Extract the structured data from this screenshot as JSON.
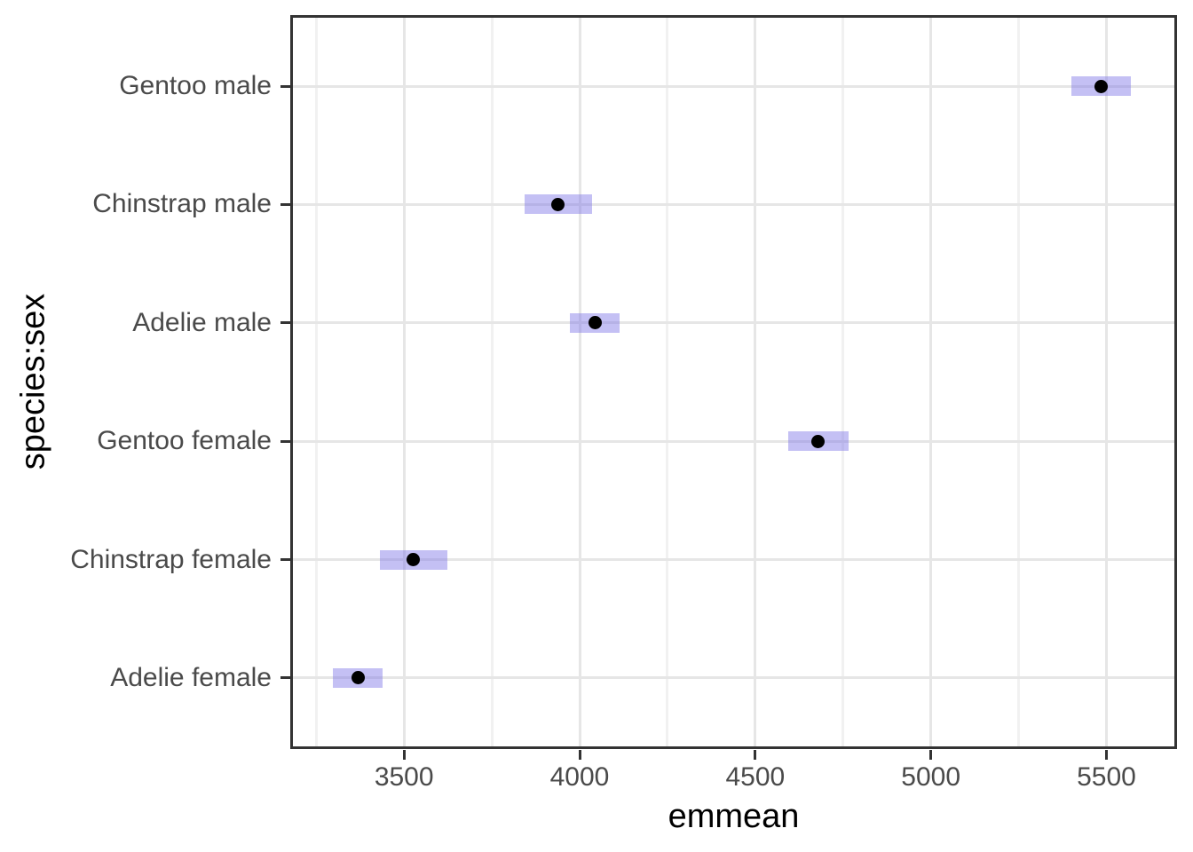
{
  "chart_data": {
    "type": "scatter",
    "subtype": "pointrange-confidence-intervals",
    "title": "",
    "xlabel": "emmean",
    "ylabel": "species:sex",
    "legend": "none",
    "grid": true,
    "categories": [
      "Gentoo male",
      "Chinstrap male",
      "Adelie male",
      "Gentoo female",
      "Chinstrap female",
      "Adelie female"
    ],
    "points": [
      {
        "label": "Gentoo male",
        "emmean": 5484.8,
        "lower": 5399.7,
        "upper": 5569.9
      },
      {
        "label": "Chinstrap male",
        "emmean": 3939.0,
        "lower": 3843.1,
        "upper": 4034.8
      },
      {
        "label": "Adelie male",
        "emmean": 4043.5,
        "lower": 3972.3,
        "upper": 4114.7
      },
      {
        "label": "Gentoo female",
        "emmean": 4679.7,
        "lower": 4594.3,
        "upper": 4765.2
      },
      {
        "label": "Chinstrap female",
        "emmean": 3527.2,
        "lower": 3431.4,
        "upper": 3623.1
      },
      {
        "label": "Adelie female",
        "emmean": 3368.8,
        "lower": 3297.6,
        "upper": 3440.1
      }
    ],
    "x_ticks": [
      3500,
      4000,
      4500,
      5000,
      5500
    ],
    "x_minor_ticks": [
      3250,
      3750,
      4250,
      4750,
      5250
    ],
    "x_range": [
      3176,
      5701
    ],
    "colors": {
      "ci_fill": "rgba(120,112,230,0.44)",
      "point": "#000000",
      "grid_major": "#e6e6e6",
      "grid_minor": "#f1f1f1",
      "panel_border": "#333333",
      "tick_mark": "#333333",
      "axis_text": "#4a4a4a",
      "axis_title": "#000000",
      "background": "#ffffff"
    }
  }
}
